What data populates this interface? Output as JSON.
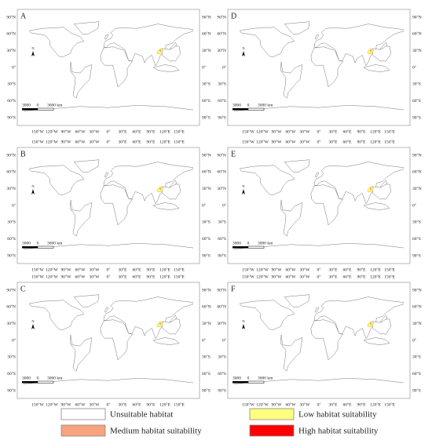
{
  "panels": [
    {
      "label": "A"
    },
    {
      "label": "B"
    },
    {
      "label": "C"
    },
    {
      "label": "D"
    },
    {
      "label": "E"
    },
    {
      "label": "F"
    }
  ],
  "longitude_labels": [
    "150°W",
    "120°W",
    "90°W",
    "60°W",
    "30°W",
    "0°",
    "30°E",
    "60°E",
    "90°E",
    "120°E",
    "150°E"
  ],
  "latitude_labels": [
    "90°N",
    "60°N",
    "30°N",
    "0°",
    "30°S",
    "60°S",
    "90°S"
  ],
  "scale_bar": {
    "left": "3000",
    "zero": "0",
    "right": "3000 km"
  },
  "north_label": "N",
  "legend": [
    {
      "label": "Unsuitable habitat",
      "color": "#ffffff"
    },
    {
      "label": "Low habitat suitability",
      "color": "#ffff80"
    },
    {
      "label": "Medium habitat suitability",
      "color": "#f8a47e"
    },
    {
      "label": "High habitat suitability",
      "color": "#ff0000"
    }
  ]
}
